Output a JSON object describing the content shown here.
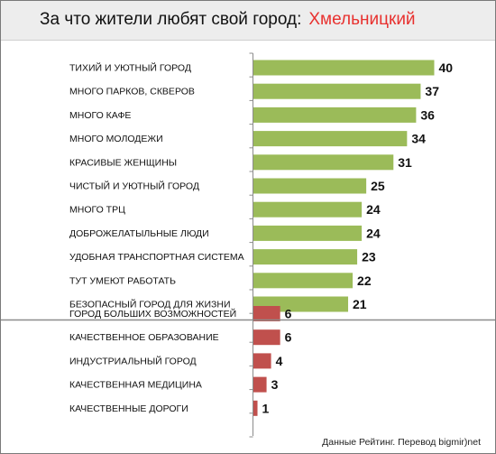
{
  "header": {
    "title": "За что жители любят свой город:",
    "city": "Хмельницкий"
  },
  "source": "Данные Рейтинг. Перевод bigmir)net",
  "colors": {
    "positive": "#9bbb59",
    "negative": "#c0504d",
    "header_bg": "#ededed",
    "city": "#e8312f"
  },
  "chart_data": {
    "type": "bar",
    "orientation": "horizontal",
    "categories": [
      "ТИХИЙ И УЮТНЫЙ ГОРОД",
      "МНОГО ПАРКОВ, СКВЕРОВ",
      "МНОГО КАФЕ",
      "МНОГО МОЛОДЕЖИ",
      "КРАСИВЫЕ ЖЕНЩИНЫ",
      "ЧИСТЫЙ И УЮТНЫЙ ГОРОД",
      "МНОГО ТРЦ",
      "ДОБРОЖЕЛАТЫЛЬНЫЕ ЛЮДИ",
      "УДОБНАЯ ТРАНСПОРТНАЯ СИСТЕМА",
      "ТУТ УМЕЮТ РАБОТАТЬ",
      "БЕЗОПАСНЫЙ ГОРОД ДЛЯ ЖИЗНИ",
      "ГОРОД БОЛЬШИХ ВОЗМОЖНОСТЕЙ",
      "КАЧЕСТВЕННОЕ ОБРАЗОВАНИЕ",
      "ИНДУСТРИАЛЬНЫЙ ГОРОД",
      "КАЧЕСТВЕННАЯ МЕДИЦИНА",
      "КАЧЕСТВЕННЫЕ ДОРОГИ"
    ],
    "values": [
      40,
      37,
      36,
      34,
      31,
      25,
      24,
      24,
      23,
      22,
      21,
      6,
      6,
      4,
      3,
      1
    ],
    "group": [
      "positive",
      "positive",
      "positive",
      "positive",
      "positive",
      "positive",
      "positive",
      "positive",
      "positive",
      "positive",
      "positive",
      "negative",
      "negative",
      "negative",
      "negative",
      "negative"
    ],
    "title": "",
    "xlabel": "",
    "ylabel": "",
    "xlim": [
      0,
      40
    ],
    "grid": false,
    "legend": "none"
  }
}
